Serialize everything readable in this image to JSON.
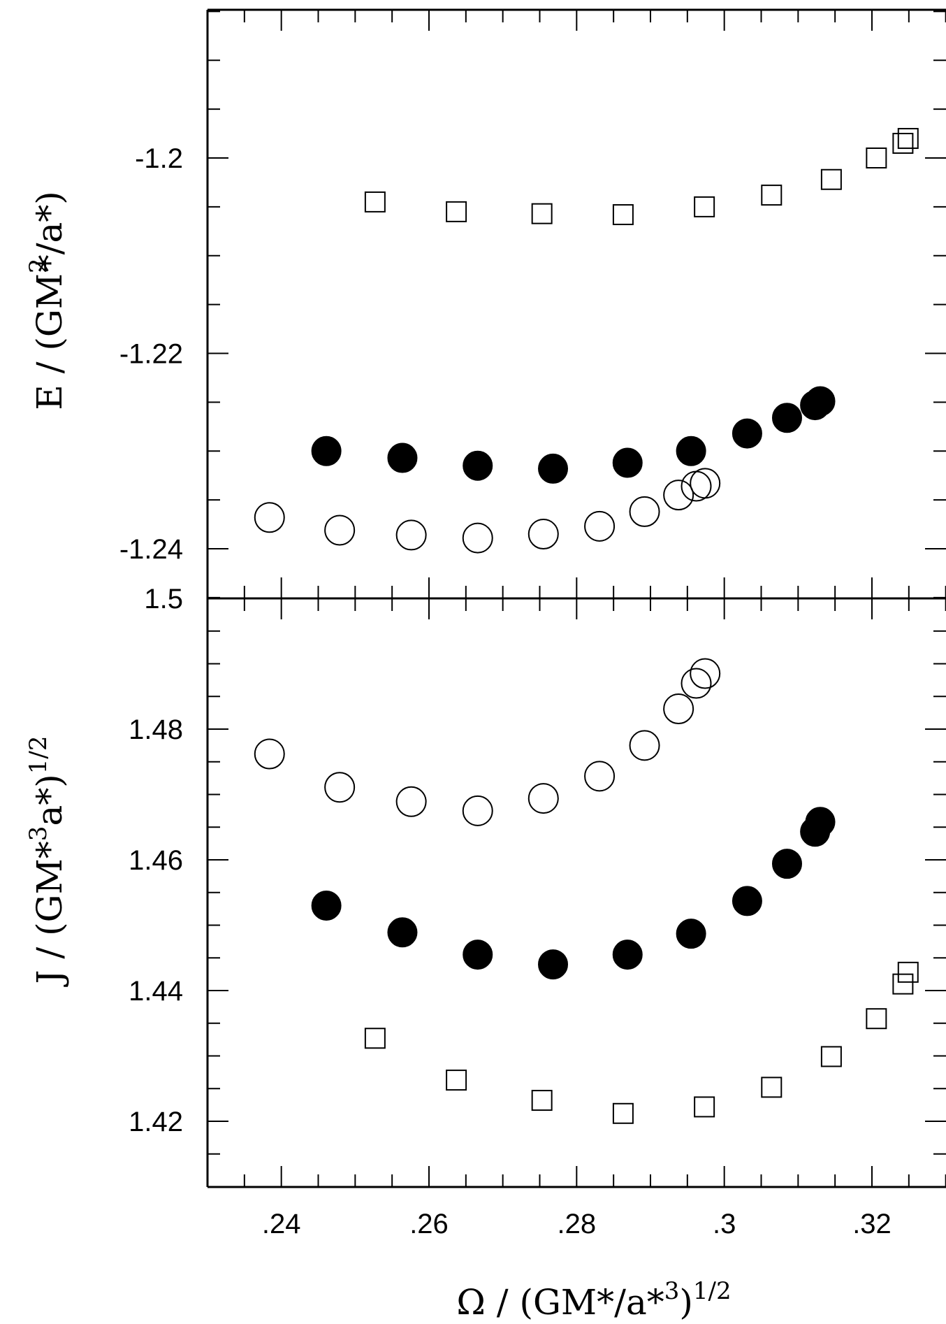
{
  "chart_data": [
    {
      "type": "scatter",
      "panel": "top",
      "ylabel": "E / (GM²*/a*)",
      "ylabel_parts": [
        "E  /  (GM",
        "2",
        "*",
        "/a*)"
      ],
      "ylim": [
        -1.245,
        -1.185
      ],
      "xlim": [
        0.23,
        0.33
      ],
      "yticks": [
        -1.2,
        -1.22,
        -1.24
      ],
      "ytick_labels": [
        "-1.2",
        "-1.22",
        "-1.24"
      ],
      "series": [
        {
          "marker": "open-square",
          "x": [
            0.2527,
            0.2637,
            0.2753,
            0.2863,
            0.2973,
            0.3064,
            0.3145,
            0.3206,
            0.3242,
            0.3249
          ],
          "y": [
            -1.2045,
            -1.2055,
            -1.2057,
            -1.2058,
            -1.205,
            -1.2038,
            -1.2022,
            -1.2,
            -1.1985,
            -1.198
          ]
        },
        {
          "marker": "filled-circle",
          "x": [
            0.2461,
            0.2564,
            0.2666,
            0.2768,
            0.2869,
            0.2955,
            0.3031,
            0.3085,
            0.3123,
            0.313
          ],
          "y": [
            -1.23,
            -1.2307,
            -1.2315,
            -1.2318,
            -1.2312,
            -1.23,
            -1.2282,
            -1.2266,
            -1.2253,
            -1.2249
          ]
        },
        {
          "marker": "open-circle",
          "x": [
            0.2384,
            0.2479,
            0.2576,
            0.2666,
            0.2755,
            0.2831,
            0.2892,
            0.2938,
            0.2962,
            0.2974
          ],
          "y": [
            -1.2368,
            -1.2381,
            -1.2386,
            -1.2389,
            -1.2385,
            -1.2377,
            -1.2362,
            -1.2345,
            -1.2336,
            -1.2333
          ]
        }
      ]
    },
    {
      "type": "scatter",
      "panel": "bottom",
      "ylabel": "J / (GM*³a*)^1/2",
      "ylabel_parts": [
        "J  /  (GM",
        "*",
        "3",
        "a*)",
        "1/2"
      ],
      "ylim": [
        1.41,
        1.5
      ],
      "xlim": [
        0.23,
        0.33
      ],
      "yticks": [
        1.5,
        1.48,
        1.46,
        1.44,
        1.42
      ],
      "ytick_labels": [
        "1.5",
        "1.48",
        "1.46",
        "1.44",
        "1.42"
      ],
      "xticks": [
        0.24,
        0.26,
        0.28,
        0.3,
        0.32
      ],
      "xtick_labels": [
        ".24",
        ".26",
        ".28",
        ".3",
        ".32"
      ],
      "xlabel": "Ω / (GM*/a*³)^1/2",
      "xlabel_parts": [
        "Ω  /  (GM*/a*",
        "3",
        ")",
        "1/2"
      ],
      "series": [
        {
          "marker": "open-square",
          "x": [
            0.2527,
            0.2637,
            0.2753,
            0.2863,
            0.2973,
            0.3064,
            0.3145,
            0.3206,
            0.3242,
            0.3249
          ],
          "y": [
            1.4327,
            1.4263,
            1.4232,
            1.4212,
            1.4222,
            1.4252,
            1.4299,
            1.4357,
            1.441,
            1.4428
          ]
        },
        {
          "marker": "filled-circle",
          "x": [
            0.2461,
            0.2564,
            0.2666,
            0.2768,
            0.2869,
            0.2955,
            0.3031,
            0.3085,
            0.3123,
            0.313
          ],
          "y": [
            1.453,
            1.4489,
            1.4455,
            1.444,
            1.4455,
            1.4487,
            1.4537,
            1.4594,
            1.4643,
            1.4658
          ]
        },
        {
          "marker": "open-circle",
          "x": [
            0.2384,
            0.2479,
            0.2576,
            0.2666,
            0.2755,
            0.2831,
            0.2892,
            0.2938,
            0.2962,
            0.2974
          ],
          "y": [
            1.4762,
            1.4711,
            1.4689,
            1.4675,
            1.4694,
            1.4728,
            1.4775,
            1.4831,
            1.487,
            1.4885
          ]
        }
      ]
    }
  ]
}
